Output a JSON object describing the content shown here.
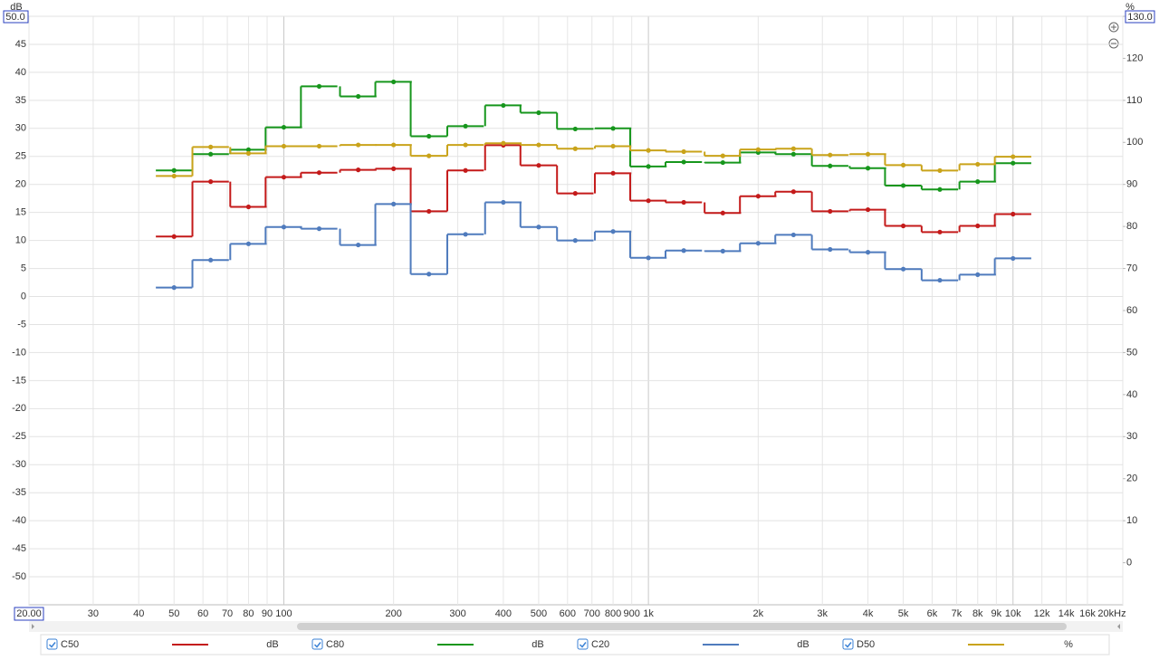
{
  "chart_data": {
    "type": "step",
    "y_label": "dB",
    "y2_label": "%",
    "xscale": "log",
    "grid": true,
    "x": [
      50,
      63,
      80,
      100,
      125,
      160,
      200,
      250,
      315,
      400,
      500,
      630,
      800,
      1000,
      1250,
      1600,
      2000,
      2500,
      3150,
      4000,
      5000,
      6300,
      8000,
      10000
    ],
    "xlim": [
      20,
      20000
    ],
    "xticks": [
      {
        "value": 20,
        "label": "20.00"
      },
      30,
      40,
      50,
      60,
      70,
      80,
      90,
      100,
      200,
      300,
      400,
      500,
      600,
      700,
      800,
      900,
      {
        "value": 1000,
        "label": "1k"
      },
      {
        "value": 2000,
        "label": "2k"
      },
      {
        "value": 3000,
        "label": "3k"
      },
      {
        "value": 4000,
        "label": "4k"
      },
      {
        "value": 5000,
        "label": "5k"
      },
      {
        "value": 6000,
        "label": "6k"
      },
      {
        "value": 7000,
        "label": "7k"
      },
      {
        "value": 8000,
        "label": "8k"
      },
      {
        "value": 9000,
        "label": "9k"
      },
      {
        "value": 10000,
        "label": "10k"
      },
      {
        "value": 12000,
        "label": "12k"
      },
      {
        "value": 14000,
        "label": "14k"
      },
      {
        "value": 16000,
        "label": "16k"
      },
      {
        "value": 20000,
        "label": "20kHz"
      }
    ],
    "ylim": [
      -55,
      50
    ],
    "yticks": [
      {
        "value": 50,
        "label": "50.0"
      },
      45,
      40,
      35,
      30,
      25,
      20,
      15,
      10,
      5,
      0,
      -5,
      -10,
      -15,
      -20,
      -25,
      -30,
      -35,
      -40,
      -45,
      -50
    ],
    "y2lim": [
      -10,
      130
    ],
    "y2ticks": [
      {
        "value": 130,
        "label": "130.0"
      },
      120,
      110,
      100,
      90,
      80,
      70,
      60,
      50,
      40,
      30,
      20,
      10,
      0
    ],
    "series": [
      {
        "name": "C50",
        "color": "#c41a1a",
        "unit": "dB",
        "values": [
          10.7,
          20.5,
          16.0,
          21.3,
          22.1,
          22.6,
          22.8,
          15.2,
          22.5,
          27.0,
          23.4,
          18.4,
          22.0,
          17.1,
          16.8,
          14.9,
          17.9,
          18.7,
          15.2,
          15.5,
          12.6,
          11.5,
          12.6,
          14.7
        ]
      },
      {
        "name": "C80",
        "color": "#16961c",
        "unit": "dB",
        "values": [
          22.5,
          25.4,
          26.2,
          30.2,
          37.5,
          35.7,
          38.3,
          28.6,
          30.4,
          34.1,
          32.8,
          29.9,
          30.0,
          23.2,
          24.0,
          23.9,
          25.7,
          25.4,
          23.3,
          22.9,
          19.8,
          19.1,
          20.5,
          23.8
        ]
      },
      {
        "name": "C20",
        "color": "#4f7bbd",
        "unit": "dB",
        "values": [
          1.6,
          6.5,
          9.4,
          12.4,
          12.1,
          9.2,
          16.5,
          4.0,
          11.1,
          16.8,
          12.4,
          10.0,
          11.6,
          6.9,
          8.2,
          8.1,
          9.5,
          11.0,
          8.4,
          7.9,
          4.9,
          2.9,
          3.9,
          6.8
        ]
      },
      {
        "name": "D50",
        "color": "#c9a31a",
        "unit": "%",
        "axis": "y2",
        "values": [
          92.0,
          98.9,
          97.4,
          99.1,
          99.1,
          99.4,
          99.4,
          96.8,
          99.4,
          99.8,
          99.4,
          98.5,
          99.1,
          98.1,
          97.8,
          96.8,
          98.3,
          98.5,
          97.0,
          97.2,
          94.6,
          93.3,
          94.8,
          96.6
        ]
      }
    ]
  }
}
